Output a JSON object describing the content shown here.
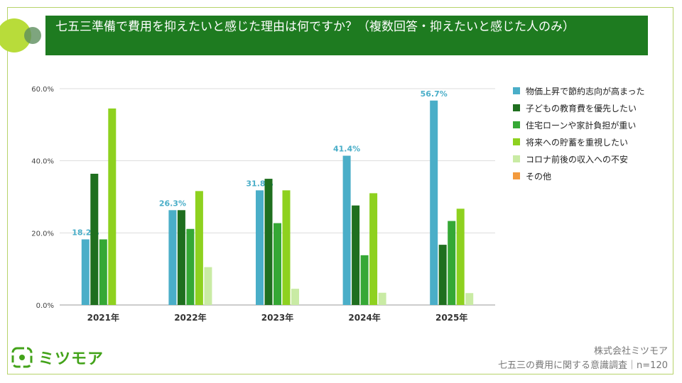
{
  "header": {
    "title": "七五三準備で費用を抑えたいと感じた理由は何ですか？（複数回答・抑えたいと感じた人のみ）"
  },
  "chart_data": {
    "type": "bar",
    "title": "七五三準備で費用を抑えたいと感じた理由は何ですか？（複数回答・抑えたいと感じた人のみ）",
    "categories": [
      "2021年",
      "2022年",
      "2023年",
      "2024年",
      "2025年"
    ],
    "ylim": [
      0,
      60
    ],
    "yticks": [
      "0.0%",
      "20.0%",
      "40.0%",
      "60.0%"
    ],
    "ytick_values": [
      0,
      20,
      40,
      60
    ],
    "grid": true,
    "legend_position": "right",
    "series": [
      {
        "name": "物価上昇で節約志向が高まった",
        "color": "#4aaec8",
        "values": [
          18.2,
          26.3,
          31.8,
          41.4,
          56.7
        ],
        "labels": [
          "18.2%",
          "26.3%",
          "31.8%",
          "41.4%",
          "56.7%"
        ]
      },
      {
        "name": "子どもの教育費を優先したい",
        "color": "#1f6f1f",
        "values": [
          36.4,
          26.3,
          35.0,
          27.6,
          16.7
        ]
      },
      {
        "name": "住宅ローンや家計負担が重い",
        "color": "#35a835",
        "values": [
          18.2,
          21.1,
          22.7,
          13.8,
          23.3
        ]
      },
      {
        "name": "将来への貯蓄を重視したい",
        "color": "#8ed11f",
        "values": [
          54.5,
          31.6,
          31.8,
          31.0,
          26.7
        ]
      },
      {
        "name": "コロナ前後の収入への不安",
        "color": "#c9eba4",
        "values": [
          0,
          10.5,
          4.5,
          3.4,
          3.3
        ]
      },
      {
        "name": "その他",
        "color": "#f39a3d",
        "values": [
          0,
          0,
          0,
          0,
          0
        ]
      }
    ]
  },
  "logo": {
    "text": "ミツモア"
  },
  "footer": {
    "company": "株式会社ミツモア",
    "survey": "七五三の費用に関する意識調査｜n=120"
  }
}
